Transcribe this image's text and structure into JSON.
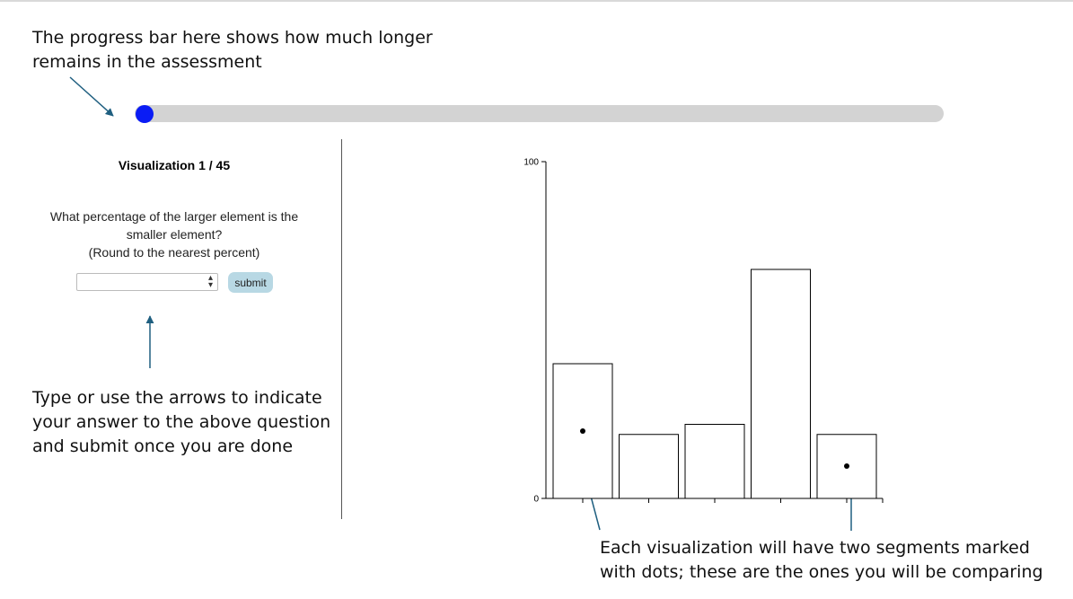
{
  "annotations": {
    "progress_note": [
      "The progress bar here shows how much longer",
      "remains in the assessment"
    ],
    "input_note": [
      "Type or use the arrows to indicate",
      "your answer to the above question",
      "and submit once you are done"
    ],
    "dots_note": [
      "Each visualization will have two segments marked",
      "with dots; these are the ones you will be comparing"
    ]
  },
  "progress": {
    "current": 1,
    "total": 45,
    "fraction": 0.0,
    "track_color": "#d3d3d3",
    "knob_color": "#0a1cf5"
  },
  "panel": {
    "title": "Visualization 1 / 45",
    "question": [
      "What percentage of the larger element is the",
      "smaller element?",
      "(Round to the nearest percent)"
    ],
    "answer_value": "",
    "stepper_icon": "up-down-arrows-icon",
    "submit_label": "submit",
    "submit_color": "#b8d8e4"
  },
  "chart_data": {
    "type": "bar",
    "categories": [
      "",
      "",
      "",
      "",
      ""
    ],
    "values": [
      40,
      19,
      22,
      68,
      19
    ],
    "marked": [
      true,
      false,
      false,
      false,
      true
    ],
    "ylim": [
      0,
      100
    ],
    "yticks": [
      0,
      100
    ],
    "title": "",
    "xlabel": "",
    "ylabel": ""
  },
  "colors": {
    "arrow": "#1f5f80",
    "bar_stroke": "#000000",
    "bar_fill": "#ffffff"
  }
}
